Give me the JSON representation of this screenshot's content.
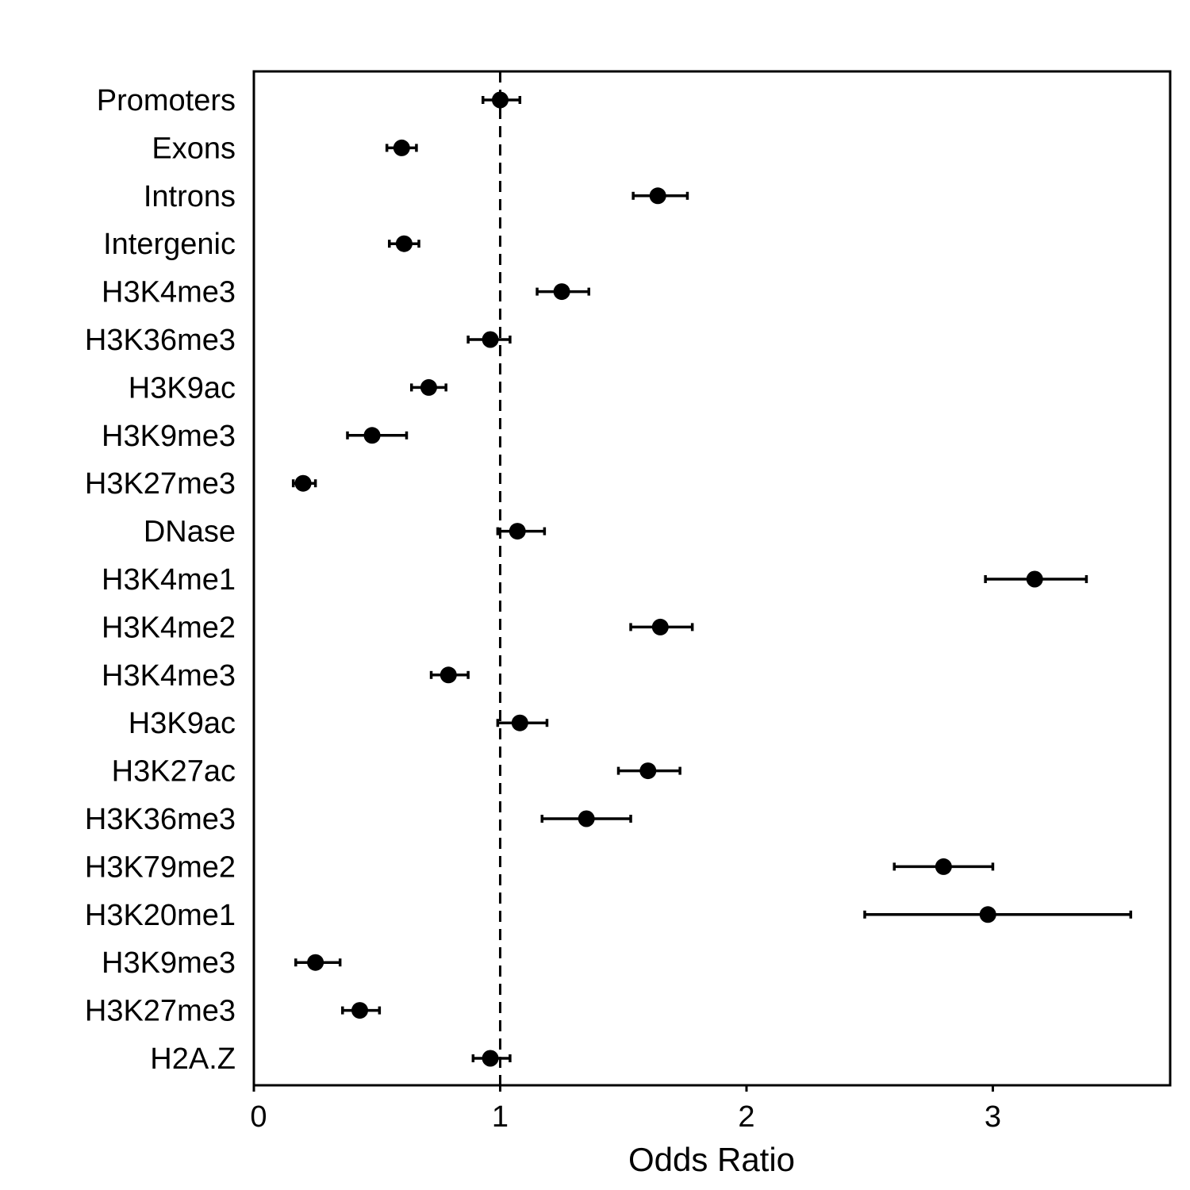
{
  "chart_data": {
    "type": "forest",
    "xlabel": "Odds Ratio",
    "xlim": [
      0,
      3.72
    ],
    "x_ticks": [
      0,
      1,
      2,
      3
    ],
    "x_tick_labels": [
      "0",
      "1",
      "2",
      "3"
    ],
    "reference_line": {
      "x": 1,
      "style": "dashed"
    },
    "grid": false,
    "legend": "none",
    "rows": [
      {
        "label": "Promoters",
        "estimate": 1.0,
        "low": 0.93,
        "high": 1.08
      },
      {
        "label": "Exons",
        "estimate": 0.6,
        "low": 0.54,
        "high": 0.66
      },
      {
        "label": "Introns",
        "estimate": 1.64,
        "low": 1.54,
        "high": 1.76
      },
      {
        "label": "Intergenic",
        "estimate": 0.61,
        "low": 0.55,
        "high": 0.67
      },
      {
        "label": "H3K4me3",
        "estimate": 1.25,
        "low": 1.15,
        "high": 1.36
      },
      {
        "label": "H3K36me3",
        "estimate": 0.96,
        "low": 0.87,
        "high": 1.04
      },
      {
        "label": "H3K9ac",
        "estimate": 0.71,
        "low": 0.64,
        "high": 0.78
      },
      {
        "label": "H3K9me3",
        "estimate": 0.48,
        "low": 0.38,
        "high": 0.62
      },
      {
        "label": "H3K27me3",
        "estimate": 0.2,
        "low": 0.16,
        "high": 0.25
      },
      {
        "label": "DNase",
        "estimate": 1.07,
        "low": 0.99,
        "high": 1.18
      },
      {
        "label": "H3K4me1",
        "estimate": 3.17,
        "low": 2.97,
        "high": 3.38
      },
      {
        "label": "H3K4me2",
        "estimate": 1.65,
        "low": 1.53,
        "high": 1.78
      },
      {
        "label": "H3K4me3",
        "estimate": 0.79,
        "low": 0.72,
        "high": 0.87
      },
      {
        "label": "H3K9ac",
        "estimate": 1.08,
        "low": 0.99,
        "high": 1.19
      },
      {
        "label": "H3K27ac",
        "estimate": 1.6,
        "low": 1.48,
        "high": 1.73
      },
      {
        "label": "H3K36me3",
        "estimate": 1.35,
        "low": 1.17,
        "high": 1.53
      },
      {
        "label": "H3K79me2",
        "estimate": 2.8,
        "low": 2.6,
        "high": 3.0
      },
      {
        "label": "H3K20me1",
        "estimate": 2.98,
        "low": 2.48,
        "high": 3.56
      },
      {
        "label": "H3K9me3",
        "estimate": 0.25,
        "low": 0.17,
        "high": 0.35
      },
      {
        "label": "H3K27me3",
        "estimate": 0.43,
        "low": 0.36,
        "high": 0.51
      },
      {
        "label": "H2A.Z",
        "estimate": 0.96,
        "low": 0.89,
        "high": 1.04
      }
    ]
  }
}
